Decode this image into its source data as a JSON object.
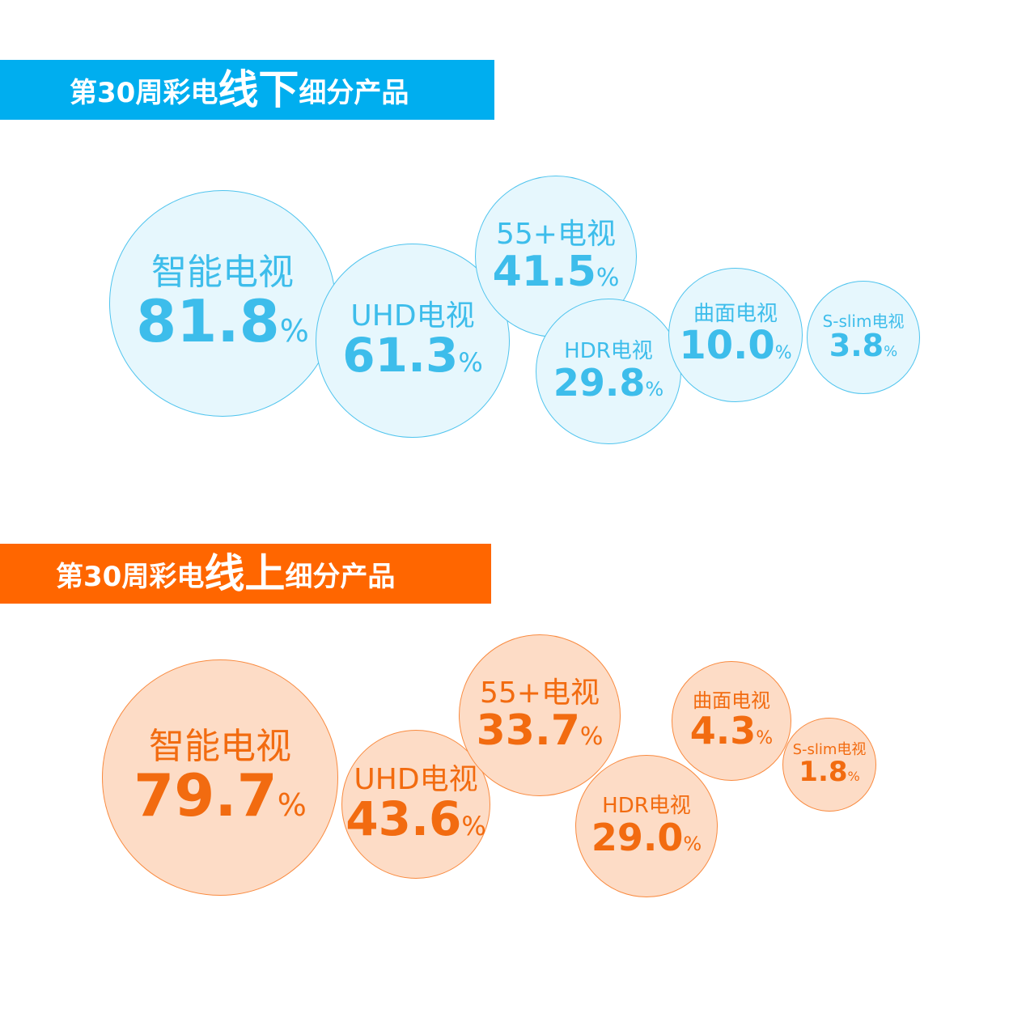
{
  "colors": {
    "offline_accent": "#00AEEF",
    "offline_text": "#3DBDEB",
    "offline_fill": "#E6F7FD",
    "offline_border": "#4FC4EE",
    "online_accent": "#FF6600",
    "online_text": "#F26B10",
    "online_fill": "#FDDCC6",
    "online_border": "#F98A3F"
  },
  "banners": {
    "offline": {
      "prefix": "第30周彩电",
      "emph": "线下",
      "suffix": "细分产品"
    },
    "online": {
      "prefix": "第30周彩电",
      "emph": "线上",
      "suffix": "细分产品"
    }
  },
  "percent_sign": "%",
  "chart_data": [
    {
      "type": "bubble",
      "title": "第30周彩电线下细分产品",
      "unit": "%",
      "categories": [
        "智能电视",
        "UHD电视",
        "55+电视",
        "HDR电视",
        "曲面电视",
        "S-slim电视"
      ],
      "values": [
        81.8,
        61.3,
        41.5,
        29.8,
        10.0,
        3.8
      ],
      "labels": [
        "81.8",
        "61.3",
        "41.5",
        "29.8",
        "10.0",
        "3.8"
      ]
    },
    {
      "type": "bubble",
      "title": "第30周彩电线上细分产品",
      "unit": "%",
      "categories": [
        "智能电视",
        "UHD电视",
        "55+电视",
        "HDR电视",
        "曲面电视",
        "S-slim电视"
      ],
      "values": [
        79.7,
        43.6,
        33.7,
        29.0,
        4.3,
        1.8
      ],
      "labels": [
        "79.7",
        "43.6",
        "33.7",
        "29.0",
        "4.3",
        "1.8"
      ]
    }
  ]
}
